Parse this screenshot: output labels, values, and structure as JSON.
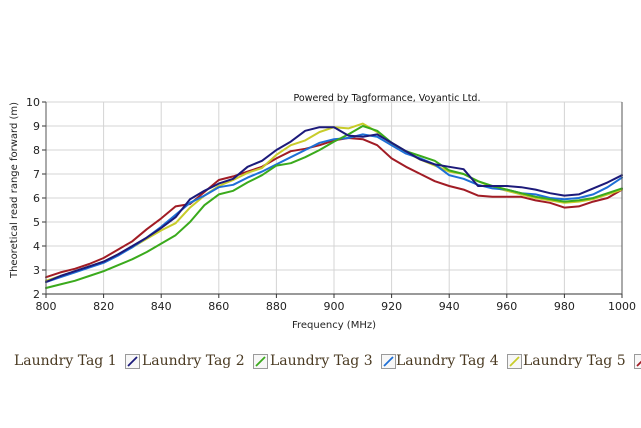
{
  "chart_data": {
    "type": "line",
    "title": "",
    "watermark": "Powered by Tagformance, Voyantic Ltd.",
    "xlabel": "Frequency (MHz)",
    "ylabel": "Theoretical read range forward (m)",
    "xlim": [
      800,
      1000
    ],
    "ylim": [
      2,
      10
    ],
    "xticks": [
      800,
      820,
      840,
      860,
      880,
      900,
      920,
      940,
      960,
      980,
      1000
    ],
    "yticks": [
      2,
      3,
      4,
      5,
      6,
      7,
      8,
      9,
      10
    ],
    "grid": true,
    "legend_position": "bottom",
    "x": [
      800,
      805,
      810,
      815,
      820,
      825,
      830,
      835,
      840,
      845,
      850,
      855,
      860,
      865,
      870,
      875,
      880,
      885,
      890,
      895,
      900,
      905,
      910,
      915,
      920,
      925,
      930,
      935,
      940,
      945,
      950,
      955,
      960,
      965,
      970,
      975,
      980,
      985,
      990,
      995,
      1000
    ],
    "series": [
      {
        "name": "Laundry Tag 1",
        "color": "#1c1a7a",
        "values": [
          2.5,
          2.75,
          2.95,
          3.15,
          3.35,
          3.65,
          4.0,
          4.35,
          4.75,
          5.2,
          5.95,
          6.3,
          6.6,
          6.8,
          7.3,
          7.55,
          8.0,
          8.35,
          8.8,
          8.95,
          8.95,
          8.6,
          8.55,
          8.65,
          8.3,
          7.95,
          7.6,
          7.4,
          7.3,
          7.2,
          6.5,
          6.5,
          6.5,
          6.45,
          6.35,
          6.2,
          6.1,
          6.15,
          6.4,
          6.65,
          6.95
        ]
      },
      {
        "name": "Laundry Tag 2",
        "color": "#3aaa1c",
        "values": [
          2.25,
          2.4,
          2.55,
          2.75,
          2.95,
          3.2,
          3.45,
          3.75,
          4.1,
          4.45,
          5.0,
          5.7,
          6.15,
          6.3,
          6.65,
          6.95,
          7.35,
          7.45,
          7.7,
          8.0,
          8.35,
          8.65,
          9.0,
          8.8,
          8.3,
          7.95,
          7.75,
          7.55,
          7.15,
          7.0,
          6.7,
          6.5,
          6.35,
          6.2,
          6.05,
          5.95,
          5.85,
          5.9,
          6.0,
          6.2,
          6.4
        ]
      },
      {
        "name": "Laundry Tag 3",
        "color": "#1e6fd6",
        "values": [
          2.5,
          2.7,
          2.9,
          3.1,
          3.3,
          3.6,
          3.95,
          4.35,
          4.8,
          5.3,
          5.8,
          6.1,
          6.45,
          6.55,
          6.85,
          7.1,
          7.4,
          7.7,
          8.0,
          8.3,
          8.45,
          8.5,
          8.65,
          8.55,
          8.2,
          7.85,
          7.65,
          7.4,
          6.95,
          6.8,
          6.55,
          6.4,
          6.35,
          6.2,
          6.15,
          6.0,
          5.95,
          6.0,
          6.15,
          6.45,
          6.85
        ]
      },
      {
        "name": "Laundry Tag 4",
        "color": "#c8cc2a",
        "values": [
          2.55,
          2.75,
          2.95,
          3.15,
          3.35,
          3.65,
          3.95,
          4.3,
          4.65,
          4.95,
          5.6,
          6.1,
          6.5,
          6.75,
          7.05,
          7.25,
          7.8,
          8.2,
          8.4,
          8.75,
          8.95,
          8.9,
          9.1,
          8.75,
          8.25,
          7.9,
          7.6,
          7.35,
          7.1,
          7.0,
          6.7,
          6.45,
          6.3,
          6.15,
          6.0,
          5.9,
          5.8,
          5.85,
          5.95,
          6.15,
          6.35
        ]
      },
      {
        "name": "Laundry Tag 5",
        "color": "#a11c25",
        "values": [
          2.7,
          2.9,
          3.05,
          3.25,
          3.5,
          3.85,
          4.2,
          4.7,
          5.15,
          5.65,
          5.75,
          6.25,
          6.75,
          6.9,
          7.1,
          7.3,
          7.65,
          7.95,
          8.05,
          8.2,
          8.4,
          8.5,
          8.45,
          8.2,
          7.65,
          7.3,
          7.0,
          6.7,
          6.5,
          6.35,
          6.1,
          6.05,
          6.05,
          6.05,
          5.9,
          5.8,
          5.6,
          5.65,
          5.85,
          6.0,
          6.35
        ]
      }
    ]
  }
}
